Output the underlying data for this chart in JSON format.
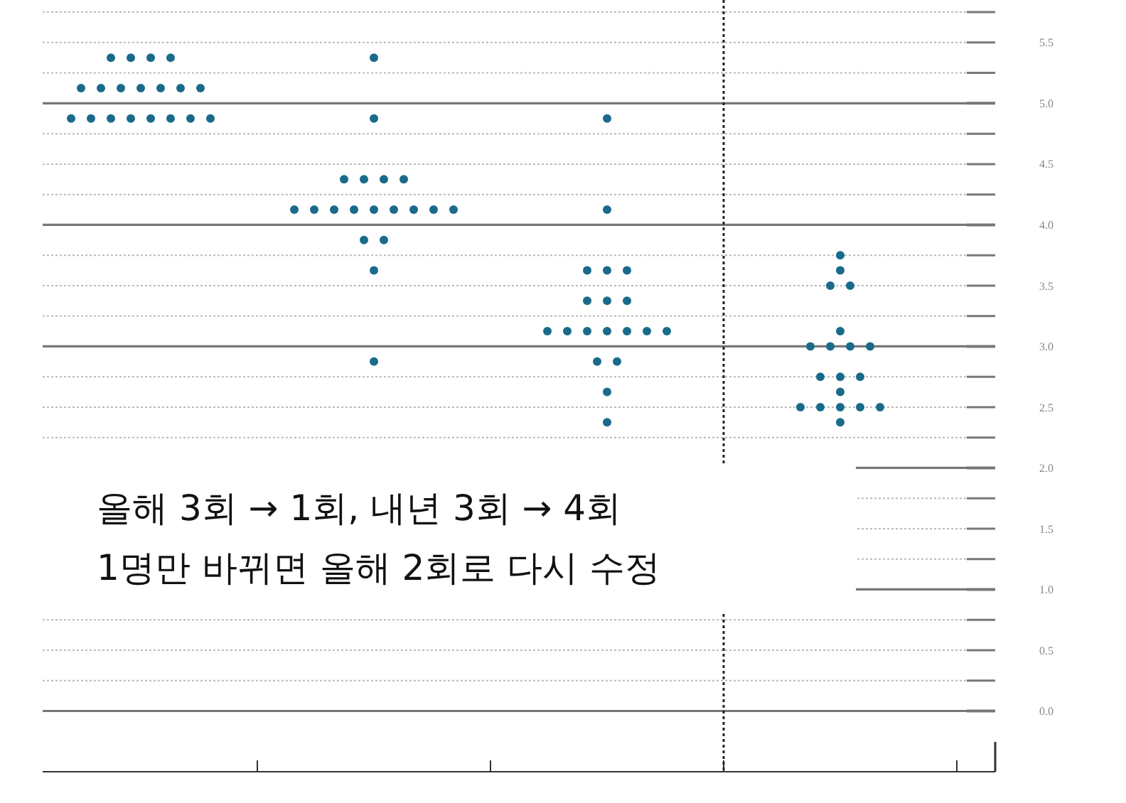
{
  "chart_data": {
    "type": "scatter",
    "categories": [
      null,
      null,
      null,
      null
    ],
    "ylim": [
      -0.5,
      5.85
    ],
    "yticks": [
      {
        "value": 0,
        "label": "0.0"
      },
      {
        "value": 0.25,
        "label": null
      },
      0.5,
      {
        "value": 0.75,
        "label": null
      },
      {
        "value": 1,
        "label": "1.0"
      },
      {
        "value": 1.25,
        "label": null
      },
      1.5,
      {
        "value": 1.75,
        "label": null
      },
      {
        "value": 2,
        "label": "2.0"
      },
      {
        "value": 2.25,
        "label": null
      },
      2.5,
      {
        "value": 2.75,
        "label": null
      },
      {
        "value": 3,
        "label": "3.0"
      },
      {
        "value": 3.25,
        "label": null
      },
      3.5,
      {
        "value": 3.75,
        "label": null
      },
      {
        "value": 4,
        "label": "4.0"
      },
      {
        "value": 4.25,
        "label": null
      },
      4.5,
      {
        "value": 4.75,
        "label": null
      },
      {
        "value": 5,
        "label": "5.0"
      },
      {
        "value": 5.25,
        "label": null
      },
      5.5,
      {
        "value": 5.75,
        "label": null
      }
    ],
    "grid": "y",
    "marker": "circle",
    "tick_labels": "y",
    "annotations": [
      "올해 3회 → 1회, 내년 3회 → 4회",
      "1명만 바뀌면 올해 2회로 다시 수정"
    ],
    "series": [
      {
        "color": "#1a6a8a",
        "values": [
          5.375,
          5.375,
          4.875,
          3.75
        ]
      },
      {
        "color": "#1a6a8a",
        "values": [
          5.375,
          4.875,
          4.125,
          3.625
        ]
      },
      {
        "color": "#1a6a8a",
        "values": [
          5.375,
          4.375,
          3.625,
          3.5
        ]
      },
      {
        "color": "#1a6a8a",
        "values": [
          5.375,
          4.375,
          3.625,
          3.5
        ]
      },
      {
        "color": "#1a6a8a",
        "values": [
          5.125,
          4.375,
          3.625,
          3.125
        ]
      },
      {
        "color": "#1a6a8a",
        "values": [
          5.125,
          4.375,
          3.375,
          3.0
        ]
      },
      {
        "color": "#1a6a8a",
        "values": [
          5.125,
          4.125,
          3.375,
          3.0
        ]
      },
      {
        "color": "#1a6a8a",
        "values": [
          5.125,
          4.125,
          3.375,
          3.0
        ]
      },
      {
        "color": "#1a6a8a",
        "values": [
          5.125,
          4.125,
          3.125,
          3.0
        ]
      },
      {
        "color": "#1a6a8a",
        "values": [
          5.125,
          4.125,
          3.125,
          2.75
        ]
      },
      {
        "color": "#1a6a8a",
        "values": [
          5.125,
          4.125,
          3.125,
          2.75
        ]
      },
      {
        "color": "#1a6a8a",
        "values": [
          4.875,
          4.125,
          3.125,
          2.75
        ]
      },
      {
        "color": "#1a6a8a",
        "values": [
          4.875,
          4.125,
          3.125,
          2.625
        ]
      },
      {
        "color": "#1a6a8a",
        "values": [
          4.875,
          4.125,
          3.125,
          2.5
        ]
      },
      {
        "color": "#1a6a8a",
        "values": [
          4.875,
          4.125,
          3.125,
          2.5
        ]
      },
      {
        "color": "#1a6a8a",
        "values": [
          4.875,
          3.875,
          2.875,
          2.5
        ]
      },
      {
        "color": "#1a6a8a",
        "values": [
          4.875,
          3.875,
          2.875,
          2.5
        ]
      },
      {
        "color": "#1a6a8a",
        "values": [
          4.875,
          3.625,
          2.625,
          2.5
        ]
      },
      {
        "color": "#1a6a8a",
        "values": [
          4.875,
          2.875,
          2.375,
          2.375
        ]
      }
    ]
  }
}
